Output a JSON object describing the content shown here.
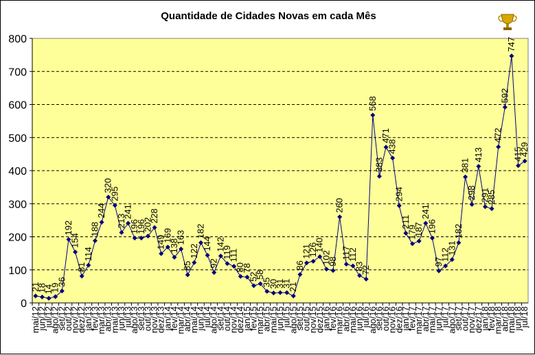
{
  "chart_data": {
    "type": "line",
    "title": "Quantidade de Cidades Novas em cada Mês",
    "xlabel": "",
    "ylabel": "",
    "ylim": [
      0,
      800
    ],
    "yticks": [
      0,
      100,
      200,
      300,
      400,
      500,
      600,
      700,
      800
    ],
    "grid": "horizontal dashed",
    "legend": "none",
    "categories": [
      "mai/12",
      "jun/12",
      "jul/12",
      "ago/12",
      "set/12",
      "out/12",
      "nov/12",
      "dez/12",
      "jan/13",
      "fev/13",
      "mar/13",
      "abr/13",
      "mai/13",
      "jun/13",
      "jul/13",
      "ago/13",
      "set/13",
      "out/13",
      "nov/13",
      "dez/13",
      "jan/14",
      "fev/14",
      "mar/14",
      "abr/14",
      "mai/14",
      "jun/14",
      "jul/14",
      "ago/14",
      "set/14",
      "out/14",
      "nov/14",
      "dez/14",
      "jan/15",
      "fev/15",
      "mar/15",
      "abr/15",
      "mai/15",
      "jun/15",
      "jul/15",
      "ago/15",
      "set/15",
      "out/15",
      "nov/15",
      "dez/15",
      "jan/16",
      "fev/16",
      "mar/16",
      "abr/16",
      "mai/16",
      "jun/16",
      "jul/16",
      "ago/16",
      "set/16",
      "out/16",
      "nov/16",
      "dez/16",
      "jan/17",
      "fev/17",
      "mar/17",
      "abr/17",
      "mai/17",
      "jun/17",
      "jul/17",
      "ago/17",
      "set/17",
      "out/17",
      "nov/17",
      "dez/17",
      "jan/18",
      "fev/18",
      "mar/18",
      "abr/18",
      "mai/18",
      "jun/18",
      "jul/18"
    ],
    "values": [
      21,
      18,
      14,
      19,
      36,
      192,
      154,
      81,
      114,
      188,
      244,
      320,
      295,
      213,
      241,
      196,
      196,
      202,
      228,
      149,
      169,
      138,
      163,
      85,
      122,
      182,
      144,
      92,
      142,
      119,
      111,
      80,
      78,
      52,
      58,
      35,
      30,
      31,
      31,
      21,
      86,
      121,
      126,
      140,
      102,
      98,
      260,
      117,
      112,
      83,
      72,
      568,
      383,
      471,
      438,
      294,
      211,
      179,
      187,
      241,
      196,
      97,
      112,
      131,
      182,
      381,
      298,
      413,
      291,
      285,
      472,
      592,
      747,
      415,
      429
    ],
    "marker_color": "#000080",
    "line_color": "#000080",
    "plot_background": "#FFFF99",
    "annotation_icon": "trophy-icon"
  }
}
